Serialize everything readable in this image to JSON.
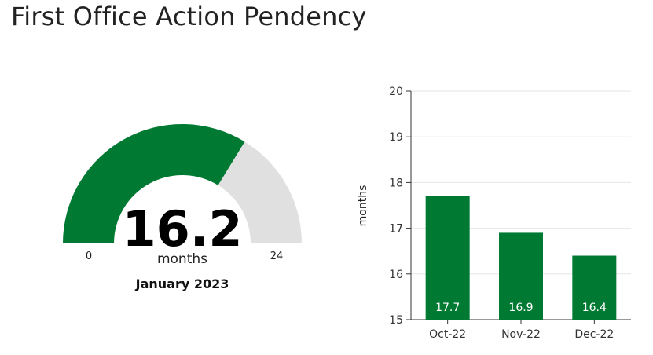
{
  "page": {
    "title": "First Office Action Pendency"
  },
  "colors": {
    "accent": "#007a33",
    "track": "#e0e0e0",
    "grid": "#e6e6e6"
  },
  "chart_data": [
    {
      "type": "gauge",
      "value": 16.2,
      "value_label": "16.2",
      "unit": "months",
      "period": "January 2023",
      "min": 0,
      "max": 24,
      "min_label": "0",
      "max_label": "24"
    },
    {
      "type": "bar",
      "categories": [
        "Oct-22",
        "Nov-22",
        "Dec-22"
      ],
      "values": [
        17.7,
        16.9,
        16.4
      ],
      "data_labels": [
        "17.7",
        "16.9",
        "16.4"
      ],
      "ylabel": "months",
      "ylim": [
        15,
        20
      ],
      "yticks": [
        "15",
        "16",
        "17",
        "18",
        "19",
        "20"
      ],
      "grid": true
    }
  ]
}
